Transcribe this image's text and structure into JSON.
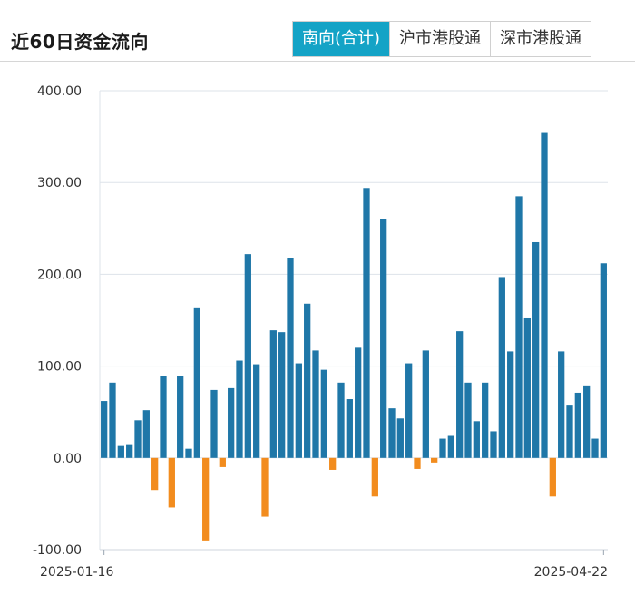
{
  "header": {
    "title": "近60日资金流向",
    "tabs": [
      {
        "label": "南向(合计)",
        "active": true
      },
      {
        "label": "沪市港股通",
        "active": false
      },
      {
        "label": "深市港股通",
        "active": false
      }
    ]
  },
  "colors": {
    "positive": "#1f77a8",
    "negative": "#f28c1e",
    "active_tab": "#14a3c6"
  },
  "chart_data": {
    "type": "bar",
    "x_start_label": "2025-01-16",
    "x_end_label": "2025-04-22",
    "yticks": [
      "400.00",
      "300.00",
      "200.00",
      "100.00",
      "0.00",
      "-100.00"
    ],
    "ylim": [
      -100,
      400
    ],
    "grid": true,
    "values": [
      62,
      82,
      13,
      14,
      41,
      52,
      -35,
      89,
      -54,
      89,
      10,
      163,
      -90,
      74,
      -10,
      76,
      106,
      222,
      102,
      -64,
      139,
      137,
      218,
      103,
      168,
      117,
      96,
      -13,
      82,
      64,
      120,
      294,
      -42,
      260,
      54,
      43,
      103,
      -12,
      117,
      -5,
      21,
      24,
      138,
      82,
      40,
      82,
      29,
      197,
      116,
      285,
      152,
      235,
      354,
      -42,
      116,
      57,
      71,
      78,
      21,
      212
    ]
  }
}
